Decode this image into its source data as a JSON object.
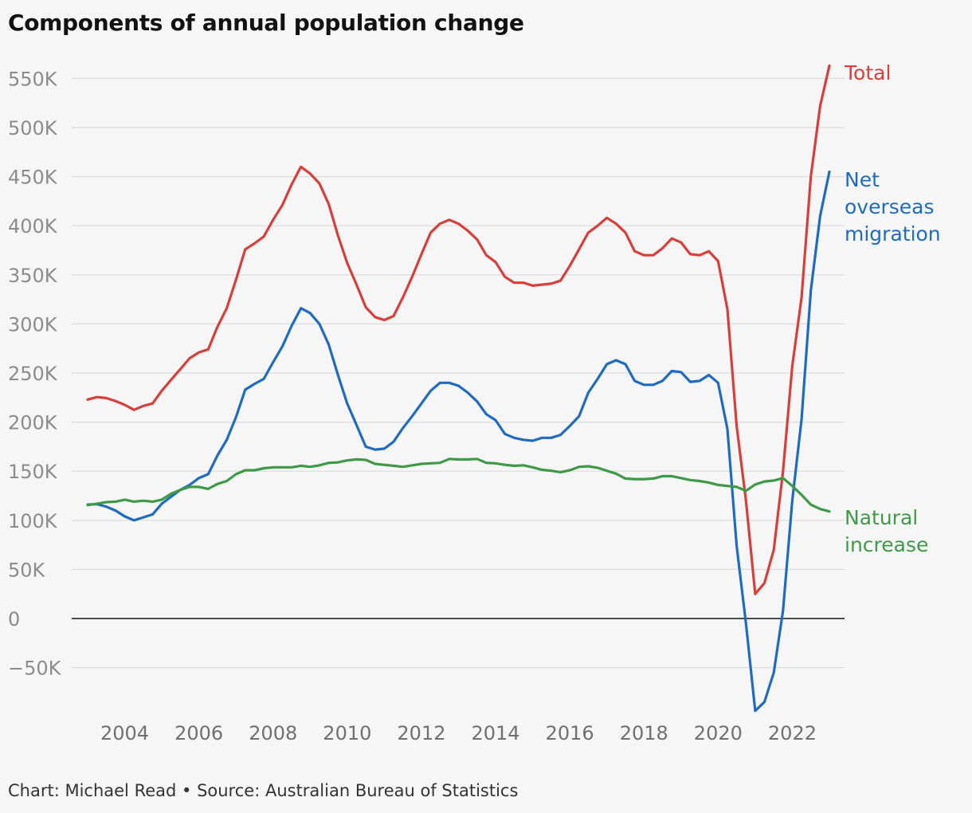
{
  "title": "Components of annual population change",
  "credit": "Chart: Michael Read • Source: Australian Bureau of Statistics",
  "chart_data": {
    "type": "line",
    "title": "Components of annual population change",
    "xlabel": "",
    "ylabel": "",
    "xlim": [
      2002.9,
      2023.5
    ],
    "ylim": [
      -95000,
      565000
    ],
    "x_ticks": [
      {
        "value": 2004,
        "label": "2004"
      },
      {
        "value": 2006,
        "label": "2006"
      },
      {
        "value": 2008,
        "label": "2008"
      },
      {
        "value": 2010,
        "label": "2010"
      },
      {
        "value": 2012,
        "label": "2012"
      },
      {
        "value": 2014,
        "label": "2014"
      },
      {
        "value": 2016,
        "label": "2016"
      },
      {
        "value": 2018,
        "label": "2018"
      },
      {
        "value": 2020,
        "label": "2020"
      },
      {
        "value": 2022,
        "label": "2022"
      }
    ],
    "y_ticks": [
      {
        "value": 550000,
        "label": "550K"
      },
      {
        "value": 500000,
        "label": "500K"
      },
      {
        "value": 450000,
        "label": "450K"
      },
      {
        "value": 400000,
        "label": "400K"
      },
      {
        "value": 350000,
        "label": "350K"
      },
      {
        "value": 300000,
        "label": "300K"
      },
      {
        "value": 250000,
        "label": "250K"
      },
      {
        "value": 200000,
        "label": "200K"
      },
      {
        "value": 150000,
        "label": "150K"
      },
      {
        "value": 100000,
        "label": "100K"
      },
      {
        "value": 50000,
        "label": "50K"
      },
      {
        "value": 0,
        "label": "0"
      },
      {
        "value": -50000,
        "label": "−50K"
      }
    ],
    "grid": true,
    "legend": "direct labels at the right end of each line",
    "series": [
      {
        "name": "Total",
        "label_lines": [
          "Total"
        ],
        "color": "#d63f3a",
        "points": [
          [
            2003.0,
            223000
          ],
          [
            2003.25,
            225500
          ],
          [
            2003.5,
            224500
          ],
          [
            2003.75,
            221500
          ],
          [
            2004.0,
            217500
          ],
          [
            2004.25,
            212500
          ],
          [
            2004.5,
            216500
          ],
          [
            2004.75,
            219000
          ],
          [
            2005.0,
            232000
          ],
          [
            2005.25,
            243000
          ],
          [
            2005.5,
            254000
          ],
          [
            2005.75,
            265000
          ],
          [
            2006.0,
            271000
          ],
          [
            2006.25,
            274000
          ],
          [
            2006.5,
            297000
          ],
          [
            2006.75,
            316000
          ],
          [
            2007.0,
            345000
          ],
          [
            2007.25,
            376000
          ],
          [
            2007.5,
            382000
          ],
          [
            2007.75,
            389000
          ],
          [
            2008.0,
            406000
          ],
          [
            2008.25,
            421000
          ],
          [
            2008.5,
            442000
          ],
          [
            2008.75,
            460000
          ],
          [
            2009.0,
            453000
          ],
          [
            2009.25,
            443000
          ],
          [
            2009.5,
            422000
          ],
          [
            2009.75,
            390000
          ],
          [
            2010.0,
            362000
          ],
          [
            2010.25,
            340000
          ],
          [
            2010.5,
            317000
          ],
          [
            2010.75,
            307000
          ],
          [
            2011.0,
            304000
          ],
          [
            2011.25,
            308000
          ],
          [
            2011.5,
            327000
          ],
          [
            2011.75,
            348000
          ],
          [
            2012.0,
            371000
          ],
          [
            2012.25,
            393000
          ],
          [
            2012.5,
            402000
          ],
          [
            2012.75,
            406000
          ],
          [
            2013.0,
            402000
          ],
          [
            2013.25,
            395000
          ],
          [
            2013.5,
            386000
          ],
          [
            2013.75,
            370000
          ],
          [
            2014.0,
            363000
          ],
          [
            2014.25,
            348000
          ],
          [
            2014.5,
            342000
          ],
          [
            2014.75,
            342000
          ],
          [
            2015.0,
            339000
          ],
          [
            2015.25,
            340000
          ],
          [
            2015.5,
            341000
          ],
          [
            2015.75,
            344000
          ],
          [
            2016.0,
            359000
          ],
          [
            2016.25,
            376000
          ],
          [
            2016.5,
            393000
          ],
          [
            2016.75,
            400000
          ],
          [
            2017.0,
            408000
          ],
          [
            2017.25,
            402000
          ],
          [
            2017.5,
            393000
          ],
          [
            2017.75,
            374000
          ],
          [
            2018.0,
            370000
          ],
          [
            2018.25,
            370000
          ],
          [
            2018.5,
            377000
          ],
          [
            2018.75,
            387000
          ],
          [
            2019.0,
            383000
          ],
          [
            2019.25,
            371000
          ],
          [
            2019.5,
            370000
          ],
          [
            2019.75,
            374000
          ],
          [
            2020.0,
            364000
          ],
          [
            2020.25,
            315000
          ],
          [
            2020.5,
            196000
          ],
          [
            2020.75,
            120000
          ],
          [
            2021.0,
            25000
          ],
          [
            2021.25,
            36000
          ],
          [
            2021.5,
            70000
          ],
          [
            2021.75,
            150000
          ],
          [
            2022.0,
            257000
          ],
          [
            2022.25,
            327000
          ],
          [
            2022.5,
            450000
          ],
          [
            2022.75,
            522000
          ],
          [
            2023.0,
            563000
          ]
        ]
      },
      {
        "name": "Net overseas migration",
        "label_lines": [
          "Net",
          "overseas",
          "migration"
        ],
        "color": "#1f6bbf",
        "points": [
          [
            2003.0,
            116000
          ],
          [
            2003.25,
            116500
          ],
          [
            2003.5,
            114000
          ],
          [
            2003.75,
            110000
          ],
          [
            2004.0,
            104000
          ],
          [
            2004.25,
            100000
          ],
          [
            2004.5,
            103000
          ],
          [
            2004.75,
            106000
          ],
          [
            2005.0,
            117000
          ],
          [
            2005.25,
            124000
          ],
          [
            2005.5,
            131000
          ],
          [
            2005.75,
            136000
          ],
          [
            2006.0,
            143000
          ],
          [
            2006.25,
            147000
          ],
          [
            2006.5,
            166000
          ],
          [
            2006.75,
            182000
          ],
          [
            2007.0,
            205000
          ],
          [
            2007.25,
            233000
          ],
          [
            2007.5,
            239000
          ],
          [
            2007.75,
            244000
          ],
          [
            2008.0,
            261000
          ],
          [
            2008.25,
            277000
          ],
          [
            2008.5,
            298000
          ],
          [
            2008.75,
            316000
          ],
          [
            2009.0,
            311000
          ],
          [
            2009.25,
            300000
          ],
          [
            2009.5,
            279000
          ],
          [
            2009.75,
            248000
          ],
          [
            2010.0,
            219000
          ],
          [
            2010.25,
            197000
          ],
          [
            2010.5,
            175000
          ],
          [
            2010.75,
            172000
          ],
          [
            2011.0,
            173000
          ],
          [
            2011.25,
            180000
          ],
          [
            2011.5,
            194000
          ],
          [
            2011.75,
            206000
          ],
          [
            2012.0,
            219000
          ],
          [
            2012.25,
            232000
          ],
          [
            2012.5,
            240000
          ],
          [
            2012.75,
            240000
          ],
          [
            2013.0,
            237000
          ],
          [
            2013.25,
            230000
          ],
          [
            2013.5,
            221000
          ],
          [
            2013.75,
            208000
          ],
          [
            2014.0,
            202000
          ],
          [
            2014.25,
            188000
          ],
          [
            2014.5,
            184000
          ],
          [
            2014.75,
            182000
          ],
          [
            2015.0,
            181000
          ],
          [
            2015.25,
            184000
          ],
          [
            2015.5,
            184000
          ],
          [
            2015.75,
            187000
          ],
          [
            2016.0,
            196000
          ],
          [
            2016.25,
            206000
          ],
          [
            2016.5,
            230000
          ],
          [
            2016.75,
            244000
          ],
          [
            2017.0,
            259000
          ],
          [
            2017.25,
            263000
          ],
          [
            2017.5,
            259000
          ],
          [
            2017.75,
            242000
          ],
          [
            2018.0,
            238000
          ],
          [
            2018.25,
            238000
          ],
          [
            2018.5,
            242000
          ],
          [
            2018.75,
            252000
          ],
          [
            2019.0,
            251000
          ],
          [
            2019.25,
            241000
          ],
          [
            2019.5,
            242000
          ],
          [
            2019.75,
            248000
          ],
          [
            2020.0,
            240000
          ],
          [
            2020.25,
            193000
          ],
          [
            2020.5,
            74000
          ],
          [
            2020.75,
            -5000
          ],
          [
            2021.0,
            -94000
          ],
          [
            2021.25,
            -85000
          ],
          [
            2021.5,
            -55000
          ],
          [
            2021.75,
            8000
          ],
          [
            2022.0,
            120000
          ],
          [
            2022.25,
            203000
          ],
          [
            2022.5,
            334000
          ],
          [
            2022.75,
            410000
          ],
          [
            2023.0,
            455000
          ]
        ]
      },
      {
        "name": "Natural increase",
        "label_lines": [
          "Natural",
          "increase"
        ],
        "color": "#3e9a46",
        "points": [
          [
            2003.0,
            115500
          ],
          [
            2003.25,
            117000
          ],
          [
            2003.5,
            118500
          ],
          [
            2003.75,
            119000
          ],
          [
            2004.0,
            121000
          ],
          [
            2004.25,
            119000
          ],
          [
            2004.5,
            120000
          ],
          [
            2004.75,
            119000
          ],
          [
            2005.0,
            121000
          ],
          [
            2005.25,
            127000
          ],
          [
            2005.5,
            131000
          ],
          [
            2005.75,
            134000
          ],
          [
            2006.0,
            134000
          ],
          [
            2006.25,
            132000
          ],
          [
            2006.5,
            137000
          ],
          [
            2006.75,
            140000
          ],
          [
            2007.0,
            147000
          ],
          [
            2007.25,
            151000
          ],
          [
            2007.5,
            151000
          ],
          [
            2007.75,
            153000
          ],
          [
            2008.0,
            154000
          ],
          [
            2008.25,
            154000
          ],
          [
            2008.5,
            154000
          ],
          [
            2008.75,
            155500
          ],
          [
            2009.0,
            154500
          ],
          [
            2009.25,
            156000
          ],
          [
            2009.5,
            158500
          ],
          [
            2009.75,
            159000
          ],
          [
            2010.0,
            161000
          ],
          [
            2010.25,
            162000
          ],
          [
            2010.5,
            161500
          ],
          [
            2010.75,
            157500
          ],
          [
            2011.0,
            156500
          ],
          [
            2011.25,
            155500
          ],
          [
            2011.5,
            154500
          ],
          [
            2011.75,
            156000
          ],
          [
            2012.0,
            157500
          ],
          [
            2012.25,
            158000
          ],
          [
            2012.5,
            158500
          ],
          [
            2012.75,
            162500
          ],
          [
            2013.0,
            162000
          ],
          [
            2013.25,
            162000
          ],
          [
            2013.5,
            162500
          ],
          [
            2013.75,
            158500
          ],
          [
            2014.0,
            158000
          ],
          [
            2014.25,
            156500
          ],
          [
            2014.5,
            155500
          ],
          [
            2014.75,
            156000
          ],
          [
            2015.0,
            154000
          ],
          [
            2015.25,
            151500
          ],
          [
            2015.5,
            150500
          ],
          [
            2015.75,
            149000
          ],
          [
            2016.0,
            151000
          ],
          [
            2016.25,
            154500
          ],
          [
            2016.5,
            155000
          ],
          [
            2016.75,
            153500
          ],
          [
            2017.0,
            150500
          ],
          [
            2017.25,
            147500
          ],
          [
            2017.5,
            142500
          ],
          [
            2017.75,
            142000
          ],
          [
            2018.0,
            142000
          ],
          [
            2018.25,
            142500
          ],
          [
            2018.5,
            145000
          ],
          [
            2018.75,
            145000
          ],
          [
            2019.0,
            143000
          ],
          [
            2019.25,
            141000
          ],
          [
            2019.5,
            140000
          ],
          [
            2019.75,
            138500
          ],
          [
            2020.0,
            136000
          ],
          [
            2020.25,
            135000
          ],
          [
            2020.5,
            134000
          ],
          [
            2020.75,
            130000
          ],
          [
            2021.0,
            136500
          ],
          [
            2021.25,
            139500
          ],
          [
            2021.5,
            140500
          ],
          [
            2021.75,
            143000
          ],
          [
            2022.0,
            135000
          ],
          [
            2022.25,
            126000
          ],
          [
            2022.5,
            116000
          ],
          [
            2022.75,
            111500
          ],
          [
            2023.0,
            109000
          ]
        ]
      }
    ]
  }
}
